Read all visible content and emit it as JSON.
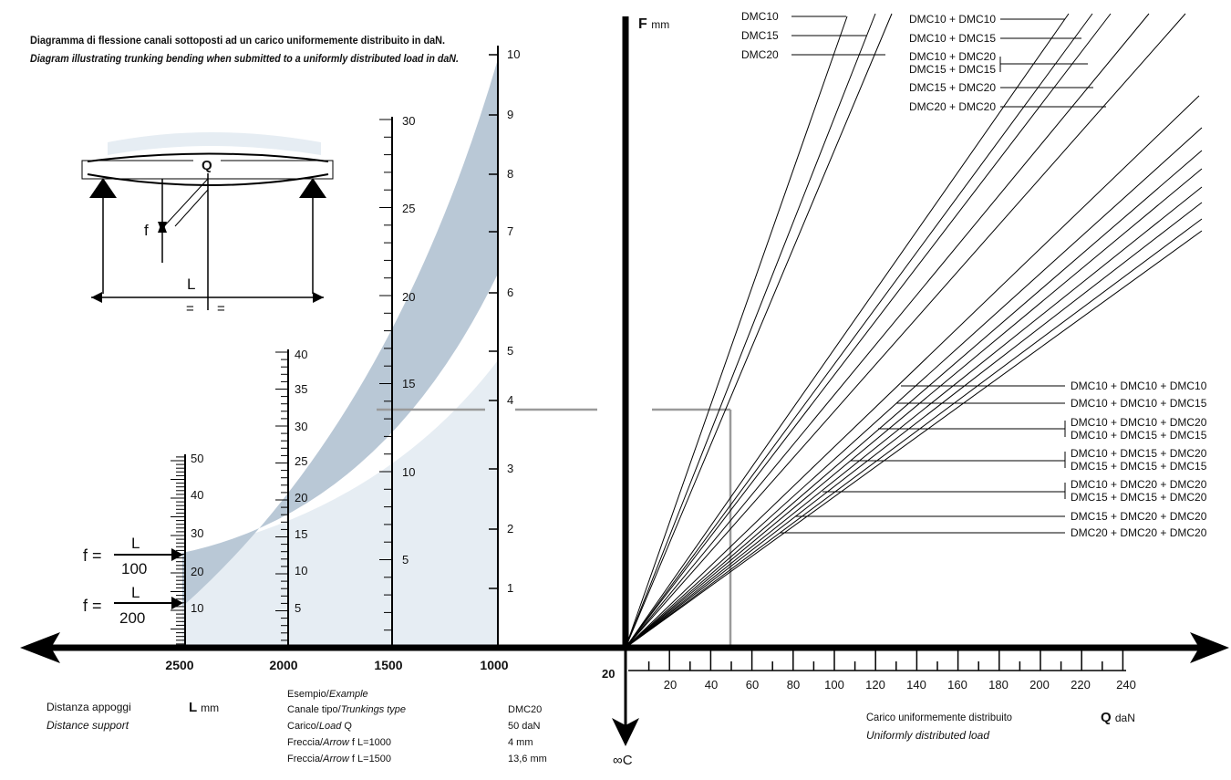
{
  "title": {
    "it": "Diagramma di flessione canali sottoposti ad un carico uniformemente distribuito in daN.",
    "en": "Diagram illustrating trunking bending when submitted to a uniformly distributed load in daN."
  },
  "beam": {
    "load": "Q",
    "deflection": "f",
    "span": "L",
    "half_left": "=",
    "half_right": "="
  },
  "ratio_rows": [
    {
      "lhs": "f =",
      "num": "L",
      "den": "100"
    },
    {
      "lhs": "f =",
      "num": "L",
      "den": "200"
    }
  ],
  "scales": [
    {
      "id": "L2500",
      "labels": [
        "10",
        "20",
        "30",
        "40",
        "50"
      ]
    },
    {
      "id": "L2000",
      "labels": [
        "5",
        "10",
        "15",
        "20",
        "25",
        "30",
        "35",
        "40"
      ]
    },
    {
      "id": "L1500",
      "labels": [
        "5",
        "10",
        "15",
        "20",
        "25",
        "30"
      ]
    },
    {
      "id": "L1000",
      "labels": [
        "1",
        "2",
        "3",
        "4",
        "5",
        "6",
        "7",
        "8",
        "9",
        "10"
      ]
    }
  ],
  "x_left_labels": [
    "2500",
    "2000",
    "1500",
    "1000"
  ],
  "f_axis_label": {
    "main": "F",
    "unit": "mm"
  },
  "c_axis_label": {
    "near": "20",
    "end": "∞C"
  },
  "q_axis": {
    "ticks": [
      "20",
      "40",
      "60",
      "80",
      "100",
      "120",
      "140",
      "160",
      "180",
      "200",
      "220",
      "240"
    ],
    "label_it": "Carico uniformemente distribuito",
    "label_en": "Uniformly distributed load",
    "unit_main": "Q",
    "unit_suffix": "daN"
  },
  "distance": {
    "it": "Distanza appoggi",
    "en": "Distance support",
    "unit_main": "L",
    "unit_suffix": "mm"
  },
  "example": {
    "heading_it": "Esempio/",
    "heading_en": "Example",
    "rows": [
      {
        "label_it": "Canale tipo/",
        "label_en": "Trunkings type",
        "suffix": "",
        "value": "DMC20"
      },
      {
        "label_it": "Carico/",
        "label_en": "Load",
        "suffix": " Q",
        "value": "50 daN"
      },
      {
        "label_it": "Freccia/",
        "label_en": "Arrow",
        "suffix": " f  L=1000",
        "value": "4 mm"
      },
      {
        "label_it": "Freccia/",
        "label_en": "Arrow",
        "suffix": " f  L=1500",
        "value": "13,6 mm"
      }
    ]
  },
  "legend_top_single": [
    "DMC10",
    "DMC15",
    "DMC20"
  ],
  "legend_top_double": [
    "DMC10 + DMC10",
    "DMC10 + DMC15",
    "DMC10 + DMC20",
    "DMC15 + DMC15",
    "DMC15 + DMC20",
    "DMC20 + DMC20"
  ],
  "legend_triple": [
    "DMC10 + DMC10 + DMC10",
    "DMC10 + DMC10 + DMC15",
    "DMC10 + DMC10 + DMC20",
    "DMC10 + DMC15 + DMC15",
    "DMC10 + DMC15 + DMC20",
    "DMC15 + DMC15 + DMC15",
    "DMC10 + DMC20 + DMC20",
    "DMC15 + DMC15 + DMC20",
    "DMC15 + DMC20 + DMC20",
    "DMC20 + DMC20 + DMC20"
  ],
  "colors": {
    "axis": "#000000",
    "band": "#b9c8d6",
    "band_light": "#e6edf3",
    "guide": "#9a9a9a"
  }
}
